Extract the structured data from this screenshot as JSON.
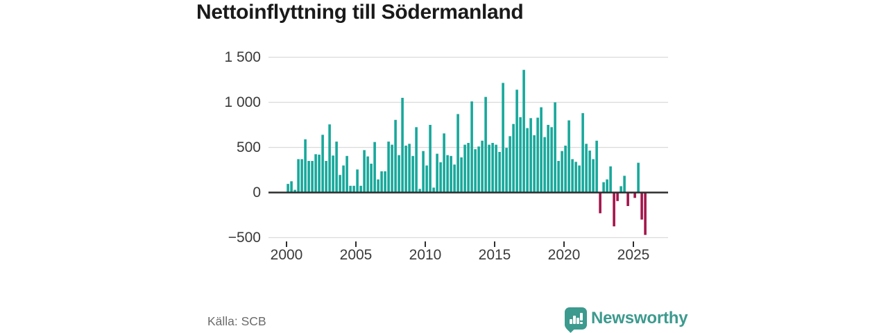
{
  "title": "Nettoinflyttning till Södermanland",
  "source": "Källa: SCB",
  "branding": {
    "logo_text": "Newsworthy",
    "logo_icon": "bar-chart-speech-bubble-icon"
  },
  "colors": {
    "positive": "#17a89b",
    "negative": "#a3154a",
    "grid": "#dbdbdb",
    "axis": "#2d2d2d",
    "text": "#3a3a3a",
    "muted": "#6b6b6b",
    "brand": "#3c9a8e",
    "title": "#1a1a1a"
  },
  "chart_data": {
    "type": "bar",
    "title": "Nettoinflyttning till Södermanland",
    "frequency": "quarterly",
    "start": "2000 Q1",
    "end": "2025 Q4",
    "x_tick_labels": [
      "2000",
      "2005",
      "2010",
      "2015",
      "2020",
      "2025"
    ],
    "x_tick_years": [
      2000,
      2005,
      2010,
      2015,
      2020,
      2025
    ],
    "y_tick_labels": [
      "1 500",
      "1 000",
      "500",
      "0",
      "−500"
    ],
    "y_ticks": [
      1500,
      1000,
      500,
      0,
      -500
    ],
    "ylim": [
      -500,
      1500
    ],
    "grid": true,
    "legend": false,
    "values": [
      95,
      125,
      30,
      370,
      370,
      590,
      350,
      350,
      425,
      420,
      640,
      350,
      755,
      410,
      565,
      195,
      300,
      405,
      75,
      75,
      255,
      75,
      470,
      400,
      320,
      560,
      145,
      235,
      235,
      565,
      530,
      805,
      415,
      1050,
      520,
      540,
      405,
      725,
      40,
      460,
      300,
      750,
      55,
      430,
      335,
      655,
      415,
      405,
      310,
      870,
      390,
      530,
      550,
      1010,
      480,
      510,
      575,
      1060,
      530,
      550,
      530,
      450,
      1215,
      495,
      625,
      760,
      1140,
      835,
      1360,
      715,
      825,
      635,
      830,
      945,
      615,
      750,
      725,
      1000,
      350,
      460,
      520,
      800,
      370,
      340,
      300,
      880,
      540,
      465,
      370,
      575,
      -230,
      115,
      145,
      290,
      -375,
      -95,
      70,
      185,
      -150,
      -10,
      -60,
      330,
      -300,
      -470
    ]
  }
}
